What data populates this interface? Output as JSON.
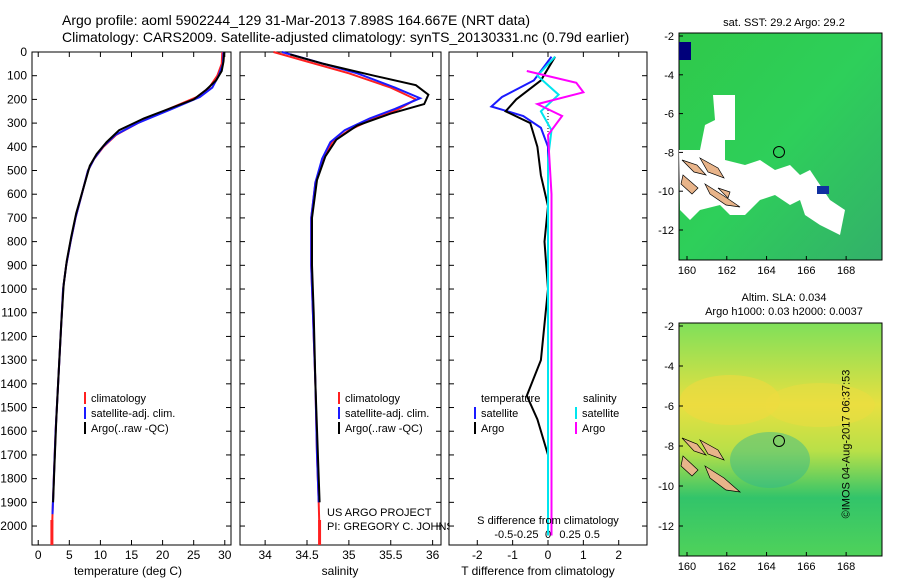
{
  "header": {
    "line1": "Argo profile: aoml 5902244_129 31-Mar-2013 7.898S 164.667E (NRT data)",
    "line2": "Climatology: CARS2009. Satellite-adjusted climatology: synTS_20130331.nc (0.79d earlier)"
  },
  "credit": "©IMOS 04-Aug-2017 06:37:53",
  "colors": {
    "climatology": "#ff2020",
    "satellite": "#1a1aff",
    "argo": "#000000",
    "salinity_sat": "#00e5ee",
    "salinity_argo": "#ff00ff"
  },
  "chart_data": [
    {
      "type": "line",
      "title": "",
      "xlabel": "temperature (deg C)",
      "ylabel": "",
      "xlim": [
        -1,
        31
      ],
      "ylim": [
        2080,
        0
      ],
      "x_ticks": [
        "0",
        "5",
        "10",
        "15",
        "20",
        "25",
        "30"
      ],
      "x_tick_values": [
        0,
        5,
        10,
        15,
        20,
        25,
        30
      ],
      "y_ticks": [
        "0",
        "100",
        "200",
        "300",
        "400",
        "500",
        "600",
        "700",
        "800",
        "900",
        "1000",
        "1100",
        "1200",
        "1300",
        "1400",
        "1500",
        "1600",
        "1700",
        "1800",
        "1900",
        "2000"
      ],
      "series": [
        {
          "name": "climatology",
          "color": "#ff2020",
          "values": [
            [
              29.6,
              0
            ],
            [
              29.5,
              50
            ],
            [
              28.8,
              100
            ],
            [
              27.5,
              150
            ],
            [
              25.5,
              190
            ],
            [
              21,
              240
            ],
            [
              16,
              300
            ],
            [
              12.5,
              350
            ],
            [
              10.5,
              400
            ],
            [
              9,
              450
            ],
            [
              8,
              500
            ],
            [
              7,
              600
            ],
            [
              6,
              700
            ],
            [
              5.2,
              800
            ],
            [
              4.5,
              900
            ],
            [
              4,
              1000
            ],
            [
              3.6,
              1200
            ],
            [
              3.2,
              1400
            ],
            [
              2.8,
              1600
            ],
            [
              2.5,
              1800
            ],
            [
              2.3,
              1950
            ],
            [
              2.2,
              2040
            ]
          ]
        },
        {
          "name": "satellite-adj. clim.",
          "color": "#1a1aff",
          "values": [
            [
              29.8,
              0
            ],
            [
              29.7,
              50
            ],
            [
              29,
              100
            ],
            [
              28,
              150
            ],
            [
              26,
              190
            ],
            [
              21.5,
              240
            ],
            [
              16,
              300
            ],
            [
              12.4,
              350
            ],
            [
              10.4,
              400
            ],
            [
              9,
              450
            ],
            [
              8,
              500
            ],
            [
              7,
              600
            ],
            [
              6,
              700
            ],
            [
              5.2,
              800
            ],
            [
              4.5,
              900
            ],
            [
              4,
              1000
            ],
            [
              3.6,
              1200
            ],
            [
              3.2,
              1400
            ],
            [
              2.8,
              1600
            ],
            [
              2.5,
              1800
            ],
            [
              2.3,
              1950
            ]
          ]
        },
        {
          "name": "Argo(..raw -QC)",
          "color": "#000000",
          "values": [
            [
              29.9,
              0
            ],
            [
              29.8,
              40
            ],
            [
              29.5,
              80
            ],
            [
              28.6,
              120
            ],
            [
              27,
              160
            ],
            [
              25,
              200
            ],
            [
              22,
              230
            ],
            [
              17,
              280
            ],
            [
              13,
              330
            ],
            [
              11,
              380
            ],
            [
              9.4,
              430
            ],
            [
              8.3,
              480
            ],
            [
              7.2,
              580
            ],
            [
              6.1,
              680
            ],
            [
              5.3,
              780
            ],
            [
              4.6,
              880
            ],
            [
              4.1,
              980
            ],
            [
              3.7,
              1150
            ],
            [
              3.3,
              1350
            ],
            [
              2.9,
              1550
            ],
            [
              2.6,
              1750
            ],
            [
              2.4,
              1900
            ]
          ]
        }
      ],
      "legend": [
        "climatology",
        "satellite-adj. clim.",
        "Argo(..raw -QC)"
      ]
    },
    {
      "type": "line",
      "title": "",
      "xlabel": "salinity",
      "ylabel": "",
      "xlim": [
        33.7,
        36.1
      ],
      "ylim": [
        2080,
        0
      ],
      "x_ticks": [
        "34",
        "34.5",
        "35",
        "35.5",
        "36"
      ],
      "x_tick_values": [
        34,
        34.5,
        35,
        35.5,
        36
      ],
      "series": [
        {
          "name": "climatology",
          "color": "#ff2020",
          "values": [
            [
              34.1,
              0
            ],
            [
              34.5,
              40
            ],
            [
              35,
              90
            ],
            [
              35.5,
              150
            ],
            [
              35.8,
              200
            ],
            [
              35.6,
              240
            ],
            [
              35.3,
              280
            ],
            [
              35,
              330
            ],
            [
              34.8,
              380
            ],
            [
              34.7,
              450
            ],
            [
              34.6,
              550
            ],
            [
              34.55,
              700
            ],
            [
              34.55,
              900
            ],
            [
              34.57,
              1100
            ],
            [
              34.6,
              1400
            ],
            [
              34.62,
              1700
            ],
            [
              34.64,
              1900
            ],
            [
              34.65,
              2040
            ]
          ]
        },
        {
          "name": "satellite-adj. clim.",
          "color": "#1a1aff",
          "values": [
            [
              34.2,
              0
            ],
            [
              34.6,
              40
            ],
            [
              35.1,
              90
            ],
            [
              35.55,
              150
            ],
            [
              35.85,
              195
            ],
            [
              35.55,
              240
            ],
            [
              35.25,
              280
            ],
            [
              34.95,
              330
            ],
            [
              34.78,
              380
            ],
            [
              34.68,
              450
            ],
            [
              34.6,
              550
            ],
            [
              34.55,
              700
            ],
            [
              34.55,
              900
            ],
            [
              34.57,
              1100
            ],
            [
              34.6,
              1400
            ],
            [
              34.62,
              1700
            ],
            [
              34.64,
              1900
            ]
          ]
        },
        {
          "name": "Argo(..raw -QC)",
          "color": "#000000",
          "values": [
            [
              34.3,
              10
            ],
            [
              34.7,
              50
            ],
            [
              35.3,
              100
            ],
            [
              35.8,
              140
            ],
            [
              35.95,
              180
            ],
            [
              35.9,
              220
            ],
            [
              35.5,
              260
            ],
            [
              35.1,
              310
            ],
            [
              34.85,
              370
            ],
            [
              34.72,
              440
            ],
            [
              34.62,
              540
            ],
            [
              34.56,
              700
            ],
            [
              34.56,
              900
            ],
            [
              34.58,
              1100
            ],
            [
              34.6,
              1400
            ],
            [
              34.63,
              1700
            ],
            [
              34.65,
              1900
            ]
          ]
        }
      ],
      "legend": [
        "climatology",
        "satellite-adj. clim.",
        "Argo(..raw -QC)"
      ],
      "annotations": [
        "US ARGO PROJECT",
        "PI: GREGORY C. JOHNSON"
      ]
    },
    {
      "type": "line",
      "title": "",
      "xlabel": "T difference from climatology",
      "xlabel2": "S difference from climatology",
      "xlim": [
        -2.8,
        2.8
      ],
      "ylim": [
        2080,
        0
      ],
      "x_ticks": [
        "-2",
        "-1",
        "0",
        "1",
        "2"
      ],
      "x_tick_values": [
        -2,
        -1,
        0,
        1,
        2
      ],
      "x2_ticks": [
        "-0.5",
        "-0.25",
        "0",
        "0.25",
        "0.5"
      ],
      "x2_tick_values": [
        -0.5,
        -0.25,
        0,
        0.25,
        0.5
      ],
      "series": [
        {
          "name": "temperature satellite",
          "color": "#1a1aff",
          "values": [
            [
              0.1,
              20
            ],
            [
              -0.4,
              120
            ],
            [
              -1.3,
              190
            ],
            [
              -1.6,
              230
            ],
            [
              -0.7,
              270
            ],
            [
              -0.2,
              320
            ],
            [
              0,
              400
            ],
            [
              0,
              600
            ],
            [
              0,
              900
            ],
            [
              0,
              1300
            ],
            [
              0,
              1900
            ]
          ]
        },
        {
          "name": "temperature Argo",
          "color": "#000000",
          "values": [
            [
              0.2,
              20
            ],
            [
              -0.2,
              120
            ],
            [
              -0.9,
              200
            ],
            [
              -1.2,
              250
            ],
            [
              -0.5,
              300
            ],
            [
              -0.3,
              400
            ],
            [
              -0.2,
              520
            ],
            [
              0,
              650
            ],
            [
              -0.1,
              800
            ],
            [
              0,
              1000
            ],
            [
              -0.2,
              1300
            ],
            [
              -0.6,
              1450
            ],
            [
              -0.3,
              1550
            ],
            [
              0,
              1700
            ],
            [
              0,
              1900
            ]
          ]
        },
        {
          "name": "salinity satellite",
          "color": "#00e5ee",
          "values": [
            [
              0.2,
              20
            ],
            [
              -0.3,
              100
            ],
            [
              0.3,
              180
            ],
            [
              -0.2,
              250
            ],
            [
              0.1,
              330
            ],
            [
              0,
              450
            ],
            [
              0,
              700
            ],
            [
              0,
              1000
            ],
            [
              0,
              1400
            ],
            [
              0,
              1900
            ],
            [
              0,
              2040
            ]
          ]
        },
        {
          "name": "salinity Argo",
          "color": "#ff00ff",
          "values": [
            [
              -0.6,
              80
            ],
            [
              0.8,
              130
            ],
            [
              1.0,
              170
            ],
            [
              -0.3,
              220
            ],
            [
              0.4,
              270
            ],
            [
              0,
              350
            ],
            [
              0.1,
              600
            ],
            [
              0.1,
              1000
            ],
            [
              0.1,
              1400
            ],
            [
              0.1,
              1900
            ],
            [
              0.1,
              2040
            ]
          ]
        }
      ],
      "legend": {
        "temperature": "temperature",
        "salinity": "salinity",
        "satellite": "satellite",
        "argo": "Argo"
      }
    }
  ],
  "map_top": {
    "title": "sat. SST: 29.2  Argo: 29.2",
    "x_ticks": [
      "160",
      "162",
      "164",
      "166",
      "168"
    ],
    "y_ticks": [
      "-2",
      "-4",
      "-6",
      "-8",
      "-10",
      "-12"
    ]
  },
  "map_bottom": {
    "title1": "Altim. SLA: 0.034",
    "title2": "Argo h1000: 0.03 h2000: 0.0037",
    "x_ticks": [
      "160",
      "162",
      "164",
      "166",
      "168"
    ],
    "y_ticks": [
      "-2",
      "-4",
      "-6",
      "-8",
      "-10",
      "-12"
    ]
  }
}
